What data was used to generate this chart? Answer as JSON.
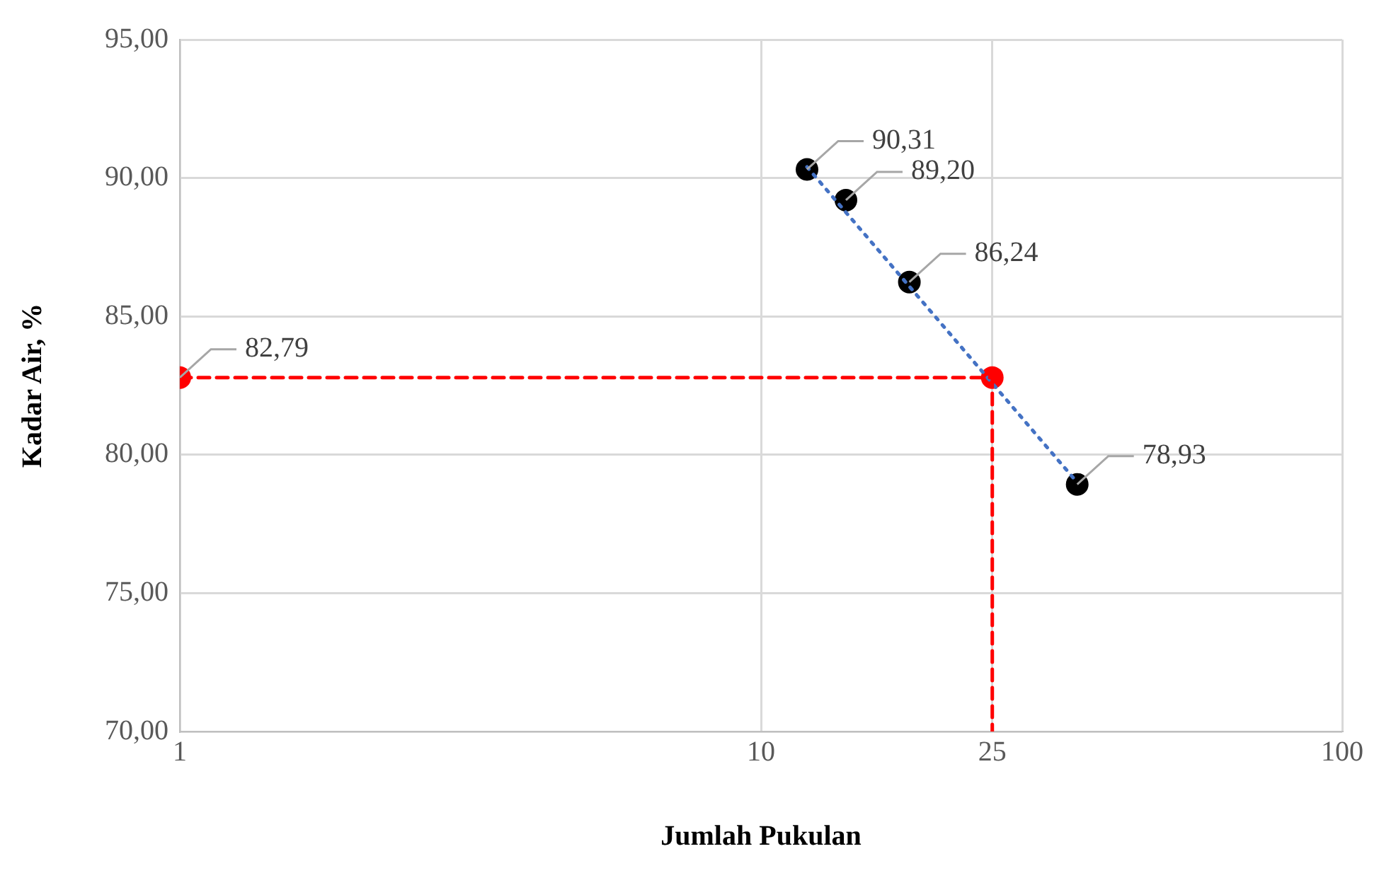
{
  "chart_data": {
    "type": "scatter",
    "xlabel": "Jumlah Pukulan",
    "ylabel": "Kadar Air, %",
    "log": "x",
    "xlim": [
      1,
      100
    ],
    "xticks": [
      1,
      10,
      25,
      100
    ],
    "ylim": [
      70,
      95
    ],
    "yticks": [
      {
        "value": 70,
        "label": "70,00"
      },
      {
        "value": 75,
        "label": "75,00"
      },
      {
        "value": 80,
        "label": "80,00"
      },
      {
        "value": 85,
        "label": "85,00"
      },
      {
        "value": 90,
        "label": "90,00"
      },
      {
        "value": 95,
        "label": "95,00"
      }
    ],
    "grid": true,
    "legend": false,
    "series": [
      {
        "type": "line",
        "color": "#ff0000",
        "line_style": "dashed",
        "marker": "none",
        "x": [
          1,
          25,
          25
        ],
        "values": [
          82.79,
          82.79,
          70
        ]
      },
      {
        "type": "line",
        "color": "#4472c4",
        "line_style": "dotted",
        "marker": "none",
        "x": [
          12,
          35
        ],
        "values": [
          90.4,
          79.0
        ]
      },
      {
        "color": "#000000",
        "marker": "circle",
        "x": [
          12,
          14,
          18,
          35
        ],
        "values": [
          90.31,
          89.2,
          86.24,
          78.93
        ],
        "value_labels": [
          "90,31",
          "89,20",
          "86,24",
          "78,93"
        ]
      },
      {
        "color": "#ff0000",
        "marker": "circle",
        "x": [
          1,
          25
        ],
        "values": [
          82.79,
          82.79
        ],
        "value_labels": [
          "82,79",
          null
        ]
      }
    ]
  }
}
